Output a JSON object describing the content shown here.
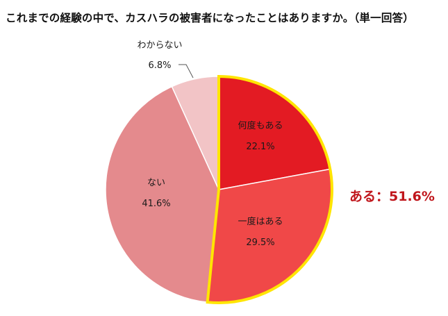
{
  "title": "これまでの経験の中で、カスハラの被害者になったことはありますか。（単一回答）",
  "callout": {
    "text": "ある：51.6%",
    "color": "#c0161c"
  },
  "colors": {
    "highlight_border": "#ffe500",
    "slice_border": "#ffffff",
    "leader_line": "#555555"
  },
  "chart_data": {
    "type": "pie",
    "title": "これまでの経験の中で、カスハラの被害者になったことはありますか。（単一回答）",
    "start_angle_deg": 0,
    "direction": "clockwise",
    "slices": [
      {
        "label": "何度もある",
        "value": 22.1,
        "value_text": "22.1%",
        "color": "#e31b23"
      },
      {
        "label": "一度はある",
        "value": 29.5,
        "value_text": "29.5%",
        "color": "#f04848"
      },
      {
        "label": "ない",
        "value": 41.6,
        "value_text": "41.6%",
        "color": "#e48a8d"
      },
      {
        "label": "わからない",
        "value": 6.8,
        "value_text": "6.8%",
        "color": "#f2c4c6"
      }
    ],
    "highlight_group": {
      "label": "ある",
      "members": [
        "何度もある",
        "一度はある"
      ],
      "total": 51.6
    }
  }
}
